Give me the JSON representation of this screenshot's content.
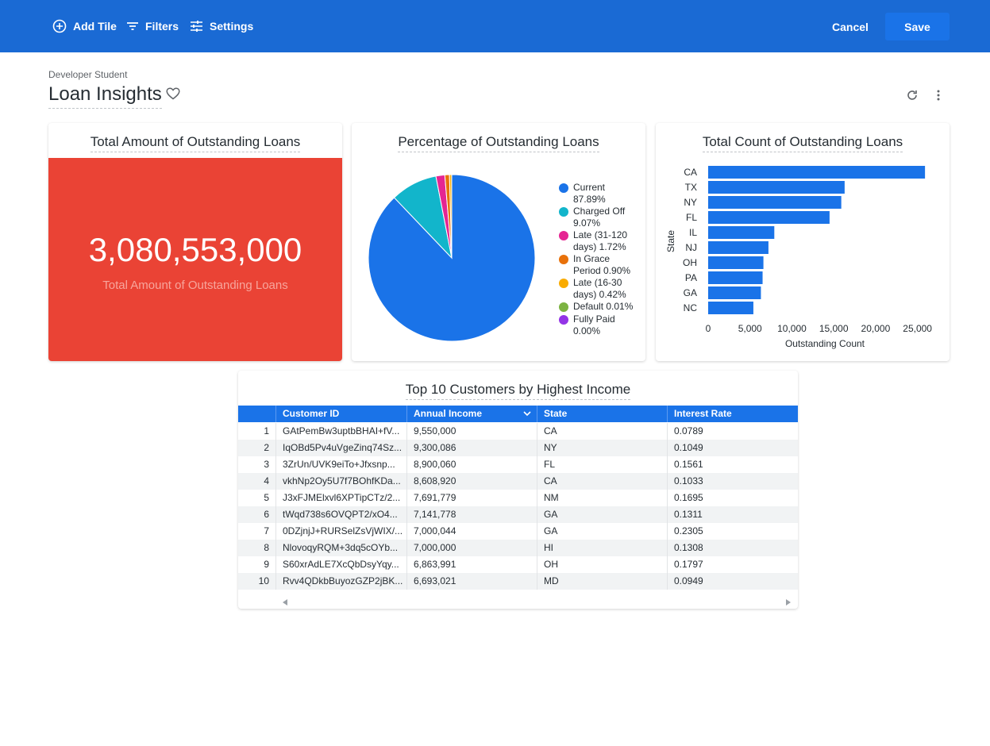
{
  "toolbar": {
    "add_tile_label": "Add Tile",
    "filters_label": "Filters",
    "settings_label": "Settings",
    "cancel_label": "Cancel",
    "save_label": "Save"
  },
  "header": {
    "breadcrumb": "Developer Student",
    "title": "Loan Insights"
  },
  "icons": {
    "add": "add-circle-icon",
    "filters": "filter-icon",
    "settings": "tune-icon",
    "favorite": "heart-icon",
    "refresh": "refresh-icon",
    "more": "kebab-menu-icon"
  },
  "colors": {
    "topbar": "#1a6ad4",
    "save": "#1a73e8",
    "kpi_background": "#ea4335",
    "bar": "#1a73e8",
    "table_header": "#1a73e8"
  },
  "tiles": {
    "kpi": {
      "title": "Total Amount of Outstanding Loans",
      "value": "3,080,553,000",
      "label": "Total Amount of Outstanding Loans"
    },
    "pie": {
      "title": "Percentage of Outstanding Loans",
      "legend": [
        {
          "line1": "Current",
          "line2": "87.89%",
          "color": "#1a73e8"
        },
        {
          "line1": "Charged Off",
          "line2": "9.07%",
          "color": "#12b5cb"
        },
        {
          "line1": "Late (31-120",
          "line2": "days) 1.72%",
          "color": "#e52592"
        },
        {
          "line1": "In Grace",
          "line2": "Period 0.90%",
          "color": "#e8710a"
        },
        {
          "line1": "Late (16-30",
          "line2": "days) 0.42%",
          "color": "#f9ab00"
        },
        {
          "line1": "Default 0.01%",
          "line2": "",
          "color": "#7cb342"
        },
        {
          "line1": "Fully Paid",
          "line2": "0.00%",
          "color": "#9334e6"
        }
      ]
    },
    "bar": {
      "title": "Total Count of Outstanding Loans"
    },
    "table": {
      "title": "Top 10 Customers by Highest Income",
      "columns": [
        "Customer ID",
        "Annual Income",
        "State",
        "Interest Rate"
      ],
      "rows": [
        {
          "idx": "1",
          "id": "GAtPemBw3uptbBHAI+fV...",
          "income": "9,550,000",
          "state": "CA",
          "rate": "0.0789"
        },
        {
          "idx": "2",
          "id": "IqOBd5Pv4uVgeZinq74Sz...",
          "income": "9,300,086",
          "state": "NY",
          "rate": "0.1049"
        },
        {
          "idx": "3",
          "id": "3ZrUn/UVK9eiTo+Jfxsnp...",
          "income": "8,900,060",
          "state": "FL",
          "rate": "0.1561"
        },
        {
          "idx": "4",
          "id": "vkhNp2Oy5U7f7BOhfKDa...",
          "income": "8,608,920",
          "state": "CA",
          "rate": "0.1033"
        },
        {
          "idx": "5",
          "id": "J3xFJMElxvl6XPTipCTz/2...",
          "income": "7,691,779",
          "state": "NM",
          "rate": "0.1695"
        },
        {
          "idx": "6",
          "id": "tWqd738s6OVQPT2/xO4...",
          "income": "7,141,778",
          "state": "GA",
          "rate": "0.1311"
        },
        {
          "idx": "7",
          "id": "0DZjnjJ+RURSelZsVjWIX/...",
          "income": "7,000,044",
          "state": "GA",
          "rate": "0.2305"
        },
        {
          "idx": "8",
          "id": "NlovoqyRQM+3dq5cOYb...",
          "income": "7,000,000",
          "state": "HI",
          "rate": "0.1308"
        },
        {
          "idx": "9",
          "id": "S60xrAdLE7XcQbDsyYqy...",
          "income": "6,863,991",
          "state": "OH",
          "rate": "0.1797"
        },
        {
          "idx": "10",
          "id": "Rvv4QDkbBuyozGZP2jBK...",
          "income": "6,693,021",
          "state": "MD",
          "rate": "0.0949"
        }
      ]
    }
  },
  "chart_data": [
    {
      "type": "pie",
      "title": "Percentage of Outstanding Loans",
      "categories": [
        "Current",
        "Charged Off",
        "Late (31-120 days)",
        "In Grace Period",
        "Late (16-30 days)",
        "Default",
        "Fully Paid"
      ],
      "values": [
        87.89,
        9.07,
        1.72,
        0.9,
        0.42,
        0.01,
        0.0
      ],
      "colors": [
        "#1a73e8",
        "#12b5cb",
        "#e52592",
        "#e8710a",
        "#f9ab00",
        "#7cb342",
        "#9334e6"
      ],
      "legend": "right"
    },
    {
      "type": "bar",
      "orientation": "horizontal",
      "title": "Total Count of Outstanding Loans",
      "categories": [
        "CA",
        "TX",
        "NY",
        "FL",
        "IL",
        "NJ",
        "OH",
        "PA",
        "GA",
        "NC"
      ],
      "values": [
        25900,
        16300,
        15900,
        14500,
        7900,
        7200,
        6600,
        6500,
        6300,
        5400
      ],
      "xlabel": "Outstanding Count",
      "ylabel": "State",
      "xlim": [
        0,
        27500
      ],
      "xticks": [
        0,
        5000,
        10000,
        15000,
        20000,
        25000
      ],
      "xtick_labels": [
        "0",
        "5,000",
        "10,000",
        "15,000",
        "20,000",
        "25,000"
      ],
      "grid": false
    }
  ]
}
